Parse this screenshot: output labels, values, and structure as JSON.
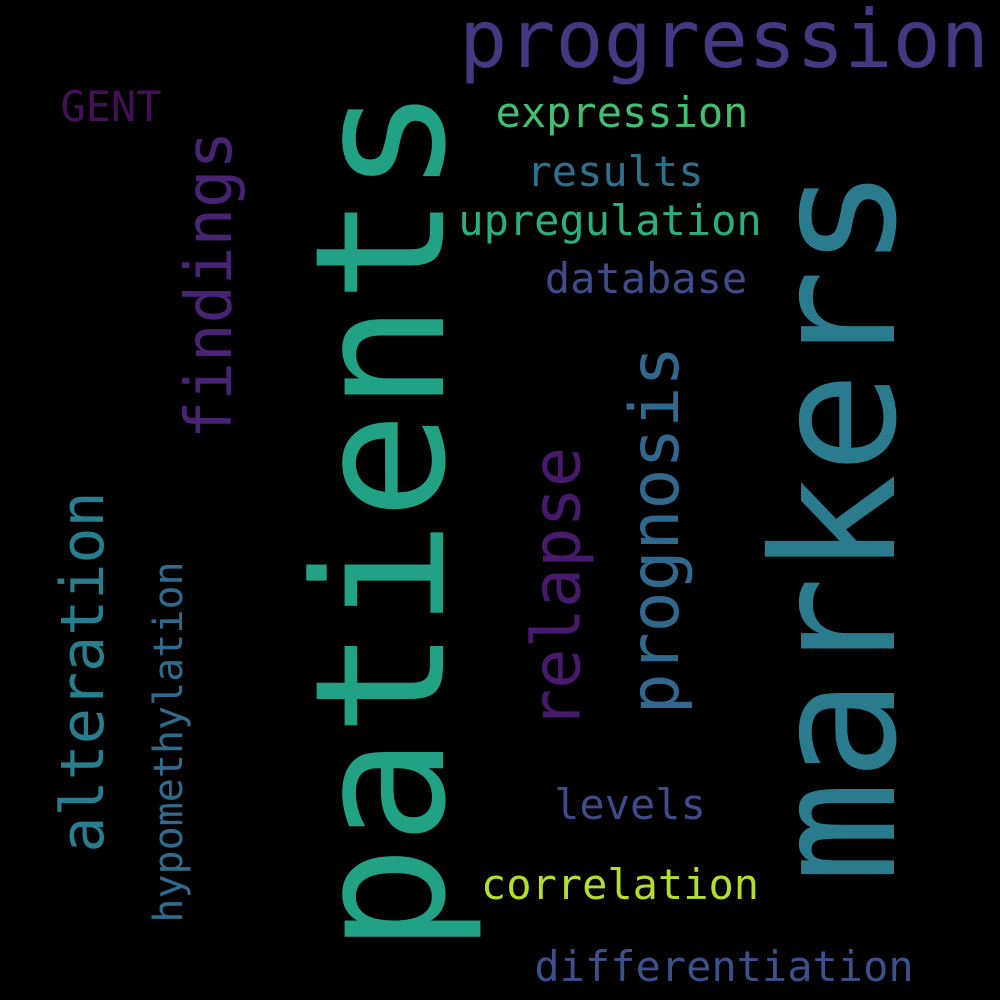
{
  "words": [
    {
      "text": "patients",
      "color": "#22a284"
    },
    {
      "text": "markers",
      "color": "#2b7b8e"
    },
    {
      "text": "progression",
      "color": "#453781"
    },
    {
      "text": "findings",
      "color": "#482374"
    },
    {
      "text": "relapse",
      "color": "#46196b"
    },
    {
      "text": "prognosis",
      "color": "#31688e"
    },
    {
      "text": "alteration",
      "color": "#277e8e"
    },
    {
      "text": "hypomethylation",
      "color": "#2f6b8e"
    },
    {
      "text": "expression",
      "color": "#43bf71"
    },
    {
      "text": "results",
      "color": "#2c728e"
    },
    {
      "text": "upregulation",
      "color": "#2ab07f"
    },
    {
      "text": "database",
      "color": "#3d4d8a"
    },
    {
      "text": "GENT",
      "color": "#440f55"
    },
    {
      "text": "levels",
      "color": "#3e4b8a"
    },
    {
      "text": "correlation",
      "color": "#b5de2b"
    },
    {
      "text": "differentiation",
      "color": "#3b518b"
    }
  ]
}
